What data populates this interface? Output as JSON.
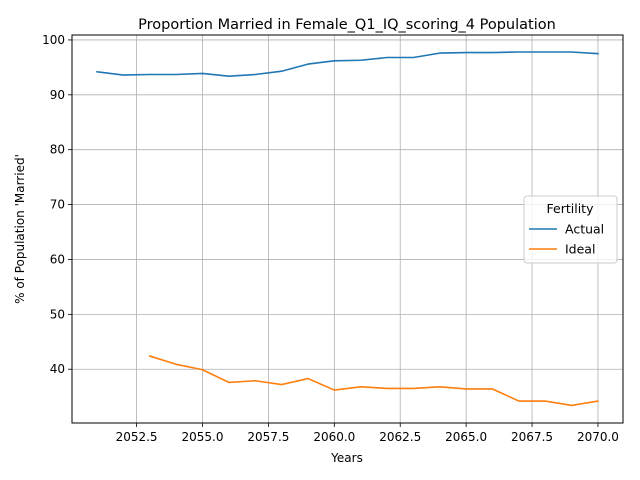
{
  "chart_data": {
    "type": "line",
    "title": "Proportion Married in Female_Q1_IQ_scoring_4 Population",
    "xlabel": "Years",
    "ylabel": "% of Population 'Married'",
    "xlim": [
      2050.05,
      2070.95
    ],
    "ylim": [
      30.2,
      100.9
    ],
    "xticks": [
      2052.5,
      2055.0,
      2057.5,
      2060.0,
      2062.5,
      2065.0,
      2067.5,
      2070.0
    ],
    "xtick_labels": [
      "2052.5",
      "2055.0",
      "2057.5",
      "2060.0",
      "2062.5",
      "2065.0",
      "2067.5",
      "2070.0"
    ],
    "yticks": [
      40,
      50,
      60,
      70,
      80,
      90,
      100
    ],
    "ytick_labels": [
      "40",
      "50",
      "60",
      "70",
      "80",
      "90",
      "100"
    ],
    "grid": true,
    "legend": {
      "title": "Fertility",
      "placement": "center-right"
    },
    "series": [
      {
        "name": "Actual",
        "color": "#1f77b4",
        "x": [
          2051,
          2052,
          2053,
          2054,
          2055,
          2056,
          2057,
          2058,
          2059,
          2060,
          2061,
          2062,
          2063,
          2064,
          2065,
          2066,
          2067,
          2068,
          2069,
          2070
        ],
        "y": [
          94.2,
          93.6,
          93.7,
          93.7,
          93.9,
          93.4,
          93.7,
          94.3,
          95.6,
          96.2,
          96.3,
          96.8,
          96.8,
          97.6,
          97.7,
          97.7,
          97.8,
          97.8,
          97.8,
          97.5
        ]
      },
      {
        "name": "Ideal",
        "color": "#ff7f0e",
        "x": [
          2053,
          2054,
          2055,
          2056,
          2057,
          2058,
          2059,
          2060,
          2061,
          2062,
          2063,
          2064,
          2065,
          2066,
          2067,
          2068,
          2069,
          2070
        ],
        "y": [
          42.4,
          40.9,
          39.9,
          37.6,
          37.9,
          37.2,
          38.3,
          36.2,
          36.8,
          36.5,
          36.5,
          36.8,
          36.4,
          36.4,
          34.2,
          34.2,
          33.4,
          34.2
        ]
      }
    ]
  }
}
